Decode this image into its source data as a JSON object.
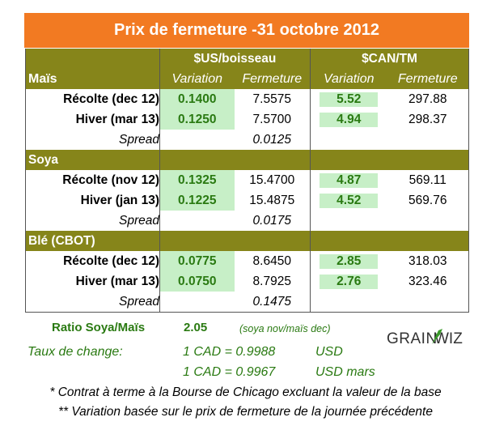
{
  "title": "Prix de fermeture -31 octobre 2012",
  "columns": {
    "group_us": "$US/boisseau",
    "group_can": "$CAN/TM",
    "variation": "Variation",
    "fermeture": "Fermeture"
  },
  "sections": [
    {
      "name": "Maïs",
      "rows": [
        {
          "label": "Récolte (dec 12)",
          "us_var": "0.1400",
          "us_close": "7.5575",
          "can_var": "5.52",
          "can_close": "297.88"
        },
        {
          "label": "Hiver (mar 13)",
          "us_var": "0.1250",
          "us_close": "7.5700",
          "can_var": "4.94",
          "can_close": "298.37"
        }
      ],
      "spread_label": "Spread",
      "spread": "0.0125"
    },
    {
      "name": "Soya",
      "rows": [
        {
          "label": "Récolte (nov 12)",
          "us_var": "0.1325",
          "us_close": "15.4700",
          "can_var": "4.87",
          "can_close": "569.11"
        },
        {
          "label": "Hiver (jan 13)",
          "us_var": "0.1225",
          "us_close": "15.4875",
          "can_var": "4.52",
          "can_close": "569.76"
        }
      ],
      "spread_label": "Spread",
      "spread": "0.0175"
    },
    {
      "name": "Blé (CBOT)",
      "rows": [
        {
          "label": "Récolte (dec 12)",
          "us_var": "0.0775",
          "us_close": "8.6450",
          "can_var": "2.85",
          "can_close": "318.03"
        },
        {
          "label": "Hiver (mar 13)",
          "us_var": "0.0750",
          "us_close": "8.7925",
          "can_var": "2.76",
          "can_close": "323.46"
        }
      ],
      "spread_label": "Spread",
      "spread": "0.1475"
    }
  ],
  "ratio": {
    "label": "Ratio Soya/Maïs",
    "value": "2.05",
    "note": "(soya nov/maïs dec)"
  },
  "exchange": {
    "label": "Taux de change:",
    "rows": [
      {
        "text": "1 CAD =  0.9988",
        "unit": "USD"
      },
      {
        "text": "1 CAD =  0.9967",
        "unit": "USD mars"
      }
    ]
  },
  "logo": {
    "text": "GRAINWIZ",
    "part1": "GRAIN",
    "part2": "WIZ"
  },
  "colors": {
    "header": "#f27a22",
    "section_band": "#86851a",
    "variation_bg": "#c7efc7",
    "accent_green": "#2a7a12"
  },
  "footnotes": [
    "* Contrat à terme à la Bourse de Chicago excluant la valeur de la base",
    "** Variation basée sur le prix de fermeture de la journée précédente"
  ]
}
